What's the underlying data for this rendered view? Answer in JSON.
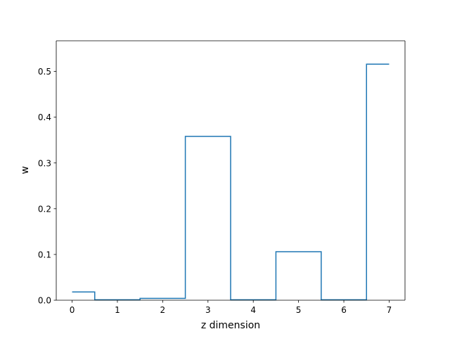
{
  "chart_data": {
    "type": "step",
    "title": "",
    "xlabel": "z dimension",
    "ylabel": "w",
    "x": [
      0,
      1,
      2,
      3,
      4,
      5,
      6,
      7
    ],
    "values": [
      0.018,
      0.001,
      0.004,
      0.358,
      0.001,
      0.106,
      0.001,
      0.516
    ],
    "step_where": "mid",
    "xlim": [
      -0.35,
      7.35
    ],
    "ylim": [
      0,
      0.567
    ],
    "xticks": [
      0,
      1,
      2,
      3,
      4,
      5,
      6,
      7
    ],
    "yticks": [
      0,
      0.1,
      0.2,
      0.3,
      0.4,
      0.5
    ],
    "ytick_labels": [
      "0.0",
      "0.1",
      "0.2",
      "0.3",
      "0.4",
      "0.5"
    ],
    "line_color": "#1f77b4",
    "grid": false,
    "legend": "none"
  }
}
